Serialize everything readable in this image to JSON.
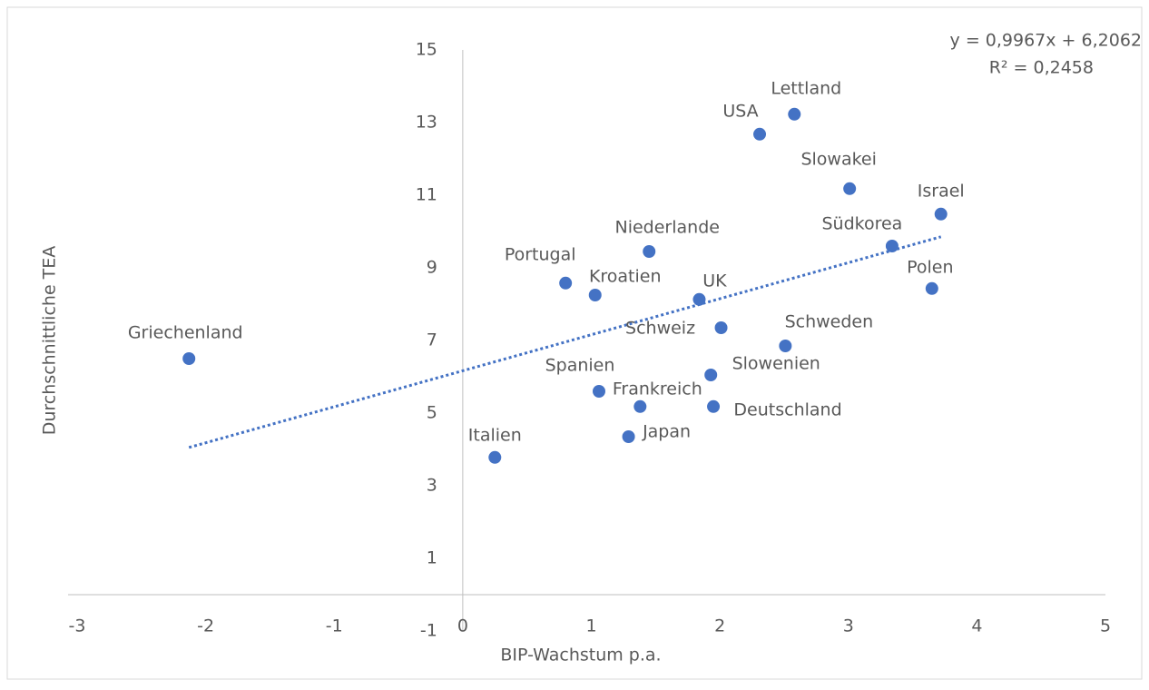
{
  "chart_data": {
    "type": "scatter",
    "x_label": "BIP-Wachstum p.a.",
    "y_label": "Durchschnittliche TEA",
    "color": "#4472c4",
    "labels": [
      "Griechenland",
      "Italien",
      "Japan",
      "Frankreich",
      "Spanien",
      "Deutschland",
      "Slowenien",
      "Schweden",
      "Schweiz",
      "UK",
      "Kroatien",
      "Portugal",
      "Niederlande",
      "Südkorea",
      "Polen",
      "Israel",
      "Slowakei",
      "USA",
      "Lettland"
    ],
    "x": [
      -2.13,
      0.25,
      1.29,
      1.38,
      1.06,
      1.95,
      1.93,
      2.51,
      2.01,
      1.84,
      1.03,
      0.8,
      1.45,
      3.34,
      3.65,
      3.72,
      3.01,
      2.31,
      2.58
    ],
    "values": [
      6.5,
      3.78,
      4.35,
      5.18,
      5.6,
      5.18,
      6.05,
      6.85,
      7.35,
      8.13,
      8.25,
      8.58,
      9.45,
      9.6,
      8.43,
      10.48,
      11.18,
      12.68,
      13.23
    ],
    "trendline": {
      "equation": "y = 0,9967x + 6,2062",
      "r_squared": "R² = 0,2458"
    },
    "xlim": [
      -3,
      5
    ],
    "xticks": [
      -3,
      -2,
      -1,
      0,
      1,
      2,
      3,
      4,
      5
    ],
    "ylim": [
      -1,
      15
    ],
    "yticks": [
      -1,
      1,
      3,
      5,
      7,
      9,
      11,
      13,
      15
    ]
  }
}
